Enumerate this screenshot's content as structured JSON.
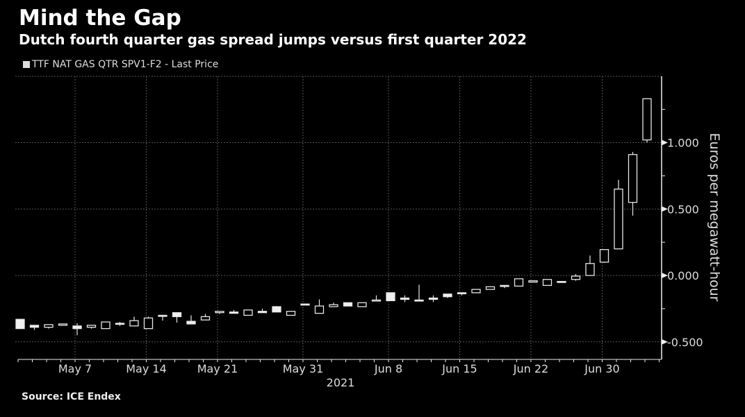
{
  "title": "Mind the Gap",
  "subtitle": "Dutch fourth quarter gas spread jumps versus first quarter 2022",
  "source": "Source: ICE Endex",
  "chart_data": {
    "type": "candlestick",
    "title": "Mind the Gap",
    "subtitle": "Dutch fourth quarter gas spread jumps versus first quarter 2022",
    "legend": [
      "TTF NAT GAS QTR SPV1-F2 - Last Price"
    ],
    "legend_placement": "top-left",
    "ylabel": "Euros per megawatt-hour",
    "xlabel": "2021",
    "ylim": [
      -0.65,
      1.5
    ],
    "yticks": [
      {
        "value": 1.0,
        "label": "1.000"
      },
      {
        "value": 0.5,
        "label": "0.500"
      },
      {
        "value": 0.0,
        "label": "0.000"
      },
      {
        "value": -0.5,
        "label": "-0.500"
      }
    ],
    "xticks": [
      {
        "index": 4,
        "label": "May 7"
      },
      {
        "index": 9,
        "label": "May 14"
      },
      {
        "index": 14,
        "label": "May 21"
      },
      {
        "index": 20,
        "label": "May 31"
      },
      {
        "index": 26,
        "label": "Jun 8"
      },
      {
        "index": 31,
        "label": "Jun 15"
      },
      {
        "index": 36,
        "label": "Jun 22"
      },
      {
        "index": 41,
        "label": "Jun 30"
      }
    ],
    "grid": true,
    "candles_ohlc": [
      [
        -0.33,
        -0.33,
        -0.4,
        -0.4
      ],
      [
        -0.375,
        -0.375,
        -0.41,
        -0.39
      ],
      [
        -0.39,
        -0.37,
        -0.4,
        -0.37
      ],
      [
        -0.375,
        -0.365,
        -0.375,
        -0.365
      ],
      [
        -0.38,
        -0.36,
        -0.45,
        -0.4
      ],
      [
        -0.39,
        -0.375,
        -0.4,
        -0.375
      ],
      [
        -0.4,
        -0.35,
        -0.4,
        -0.35
      ],
      [
        -0.36,
        -0.35,
        -0.38,
        -0.365
      ],
      [
        -0.38,
        -0.31,
        -0.38,
        -0.34
      ],
      [
        -0.4,
        -0.31,
        -0.4,
        -0.32
      ],
      [
        -0.3,
        -0.3,
        -0.34,
        -0.305
      ],
      [
        -0.28,
        -0.28,
        -0.355,
        -0.31
      ],
      [
        -0.345,
        -0.3,
        -0.365,
        -0.365
      ],
      [
        -0.335,
        -0.29,
        -0.335,
        -0.31
      ],
      [
        -0.28,
        -0.27,
        -0.29,
        -0.27
      ],
      [
        -0.275,
        -0.26,
        -0.285,
        -0.285
      ],
      [
        -0.3,
        -0.26,
        -0.3,
        -0.26
      ],
      [
        -0.27,
        -0.25,
        -0.28,
        -0.28
      ],
      [
        -0.235,
        -0.23,
        -0.275,
        -0.275
      ],
      [
        -0.3,
        -0.27,
        -0.3,
        -0.27
      ],
      [
        -0.215,
        -0.215,
        -0.215,
        -0.215
      ],
      [
        -0.285,
        -0.18,
        -0.285,
        -0.23
      ],
      [
        -0.235,
        -0.205,
        -0.235,
        -0.22
      ],
      [
        -0.205,
        -0.205,
        -0.23,
        -0.23
      ],
      [
        -0.235,
        -0.205,
        -0.235,
        -0.205
      ],
      [
        -0.19,
        -0.15,
        -0.19,
        -0.185
      ],
      [
        -0.13,
        -0.13,
        -0.19,
        -0.19
      ],
      [
        -0.17,
        -0.15,
        -0.2,
        -0.18
      ],
      [
        -0.185,
        -0.07,
        -0.185,
        -0.185
      ],
      [
        -0.17,
        -0.15,
        -0.2,
        -0.18
      ],
      [
        -0.14,
        -0.14,
        -0.17,
        -0.16
      ],
      [
        -0.13,
        -0.13,
        -0.15,
        -0.13
      ],
      [
        -0.13,
        -0.105,
        -0.13,
        -0.105
      ],
      [
        -0.105,
        -0.085,
        -0.105,
        -0.085
      ],
      [
        -0.075,
        -0.075,
        -0.095,
        -0.075
      ],
      [
        -0.08,
        -0.025,
        -0.08,
        -0.025
      ],
      [
        -0.05,
        -0.04,
        -0.05,
        -0.04
      ],
      [
        -0.075,
        -0.03,
        -0.075,
        -0.03
      ],
      [
        -0.045,
        -0.045,
        -0.045,
        -0.045
      ],
      [
        -0.03,
        0.01,
        -0.04,
        -0.005
      ],
      [
        0.0,
        0.15,
        0.0,
        0.09
      ],
      [
        0.1,
        0.195,
        0.095,
        0.195
      ],
      [
        0.2,
        0.72,
        0.2,
        0.65
      ],
      [
        0.55,
        0.93,
        0.45,
        0.91
      ],
      [
        1.02,
        1.33,
        1.0,
        1.33
      ]
    ]
  },
  "colors": {
    "background": "#000000",
    "candle": "#e6e6e6",
    "grid": "#555555",
    "text": "#dddddd"
  }
}
